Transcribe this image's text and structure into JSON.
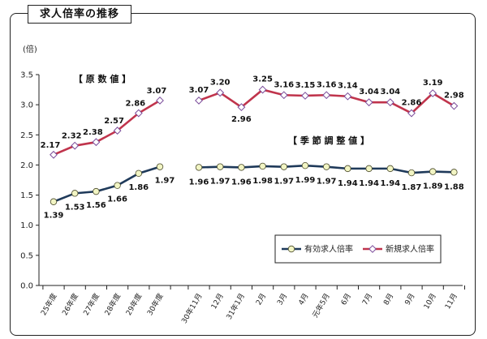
{
  "title": "求人倍率の推移",
  "chart_data": {
    "type": "line",
    "y_unit": "(倍)",
    "ylim": [
      0.0,
      3.5
    ],
    "yticks": [
      "0.0",
      "0.5",
      "1.0",
      "1.5",
      "2.0",
      "2.5",
      "3.0",
      "3.5"
    ],
    "grid": false,
    "legend_position": "bottom-right",
    "groups": [
      {
        "label": "【 原 数 値 】",
        "categories": [
          "25年度",
          "26年度",
          "27年度",
          "28年度",
          "29年度",
          "30年度"
        ],
        "series": [
          {
            "name": "有効求人倍率",
            "values": [
              1.39,
              1.53,
              1.56,
              1.66,
              1.86,
              1.97
            ],
            "labels": [
              "1.39",
              "1.53",
              "1.56",
              "1.66",
              "1.86",
              "1.97"
            ]
          },
          {
            "name": "新規求人倍率",
            "values": [
              2.17,
              2.32,
              2.38,
              2.57,
              2.86,
              3.07
            ],
            "labels": [
              "2.17",
              "2.32",
              "2.38",
              "2.57",
              "2.86",
              "3.07"
            ]
          }
        ]
      },
      {
        "label": "【 季 節 調 整 値 】",
        "categories": [
          "30年11月",
          "12月",
          "31年1月",
          "2月",
          "3月",
          "4月",
          "元年5月",
          "6月",
          "7月",
          "8月",
          "9月",
          "10月",
          "11月"
        ],
        "series": [
          {
            "name": "有効求人倍率",
            "values": [
              1.96,
              1.97,
              1.96,
              1.98,
              1.97,
              1.99,
              1.97,
              1.94,
              1.94,
              1.94,
              1.87,
              1.89,
              1.88
            ],
            "labels": [
              "1.96",
              "1.97",
              "1.96",
              "1.98",
              "1.97",
              "1.99",
              "1.97",
              "1.94",
              "1.94",
              "1.94",
              "1.87",
              "1.89",
              "1.88"
            ]
          },
          {
            "name": "新規求人倍率",
            "values": [
              3.07,
              3.2,
              2.96,
              3.25,
              3.16,
              3.15,
              3.16,
              3.14,
              3.04,
              3.04,
              2.86,
              3.19,
              2.98
            ],
            "labels": [
              "3.07",
              "3.20",
              "2.96",
              "3.25",
              "3.16",
              "3.15",
              "3.16",
              "3.14",
              "3.04",
              "3.04",
              "2.86",
              "3.19",
              "2.98"
            ]
          }
        ]
      }
    ],
    "legend": [
      {
        "name": "有効求人倍率",
        "color": "#1f3a5a",
        "marker": "circle"
      },
      {
        "name": "新規求人倍率",
        "color": "#c0344c",
        "marker": "diamond"
      }
    ]
  }
}
